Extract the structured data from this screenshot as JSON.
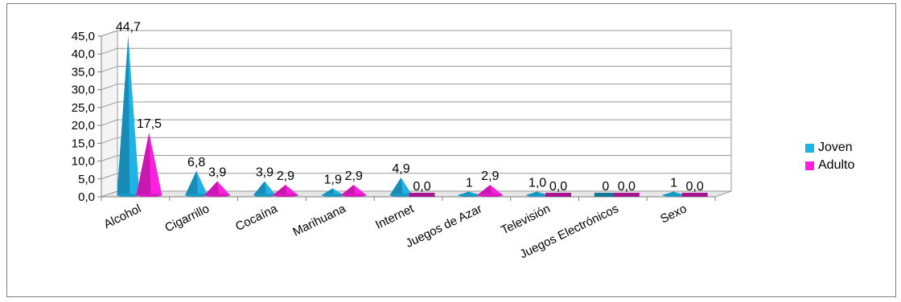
{
  "chart_data": {
    "type": "bar",
    "title": "",
    "xlabel": "",
    "ylabel": "",
    "categories": [
      "Alcohol",
      "Cigarrillo",
      "Cocaína",
      "Marihuana",
      "Internet",
      "Juegos de Azar",
      "Televisión",
      "Juegos Electrónicos",
      "Sexo"
    ],
    "series": [
      {
        "name": "Joven",
        "color": "#1fb4e8",
        "values": [
          44.7,
          6.8,
          3.9,
          1.9,
          4.9,
          1.0,
          1.0,
          0.0,
          1.0
        ],
        "labels": [
          "44,7",
          "6,8",
          "3,9",
          "1,9",
          "4,9",
          "1",
          "1,0",
          "0",
          "1"
        ]
      },
      {
        "name": "Adulto",
        "color": "#ff1fe0",
        "values": [
          17.5,
          3.9,
          2.9,
          2.9,
          0.0,
          2.9,
          0.0,
          0.0,
          0.0
        ],
        "labels": [
          "17,5",
          "3,9",
          "2,9",
          "2,9",
          "0,0",
          "2,9",
          "0,0",
          "0,0",
          "0,0"
        ]
      }
    ],
    "yticks": [
      "0,0",
      "5,0",
      "10,0",
      "15,0",
      "20,0",
      "25,0",
      "30,0",
      "35,0",
      "40,0",
      "45,0"
    ],
    "ylim": [
      0,
      45
    ],
    "grid": true,
    "legend_position": "right",
    "shape": "3d-cone"
  }
}
